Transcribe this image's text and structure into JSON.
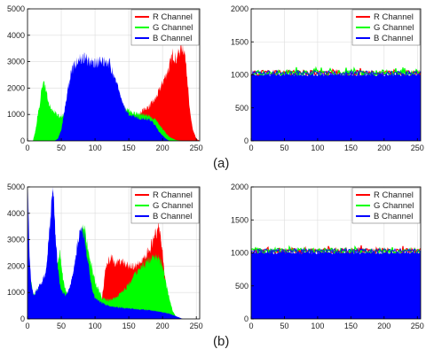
{
  "captions": {
    "a": "(a)",
    "b": "(b)"
  },
  "colors": {
    "R Channel": "#ff0000",
    "G Channel": "#00ff00",
    "B Channel": "#0000ff",
    "axis": "#000000",
    "grid": "#dcdcdc"
  },
  "chart_data": [
    {
      "id": "a-original",
      "type": "area",
      "xlim": [
        0,
        255
      ],
      "ylim": [
        0,
        5000
      ],
      "xticks": [
        0,
        50,
        100,
        150,
        200,
        250
      ],
      "yticks": [
        0,
        1000,
        2000,
        3000,
        4000,
        5000
      ],
      "grid": true,
      "legend": "top-right",
      "series": [
        {
          "name": "R Channel",
          "x": [
            0,
            90,
            110,
            130,
            150,
            160,
            170,
            180,
            190,
            200,
            210,
            215,
            220,
            225,
            230,
            235,
            240,
            245,
            250,
            255
          ],
          "values": [
            0,
            0,
            0,
            150,
            500,
            800,
            1150,
            1300,
            1600,
            2200,
            2800,
            3300,
            3100,
            3400,
            3600,
            3000,
            1200,
            400,
            80,
            0
          ]
        },
        {
          "name": "G Channel",
          "x": [
            0,
            8,
            12,
            15,
            18,
            20,
            22,
            24,
            26,
            28,
            32,
            36,
            40,
            44,
            48,
            52,
            56,
            60,
            70,
            80,
            90,
            100,
            110,
            120,
            130,
            140,
            150,
            160,
            170,
            180,
            190,
            200,
            210,
            220,
            230,
            240,
            255
          ],
          "values": [
            0,
            0,
            400,
            1000,
            1400,
            1800,
            2100,
            2200,
            2050,
            1800,
            1400,
            1150,
            1100,
            1000,
            900,
            950,
            1000,
            1100,
            1350,
            1500,
            1600,
            1650,
            1550,
            1450,
            1400,
            1300,
            1150,
            1050,
            1000,
            950,
            800,
            450,
            150,
            30,
            0,
            0,
            0
          ]
        },
        {
          "name": "B Channel",
          "x": [
            0,
            40,
            45,
            50,
            55,
            60,
            65,
            70,
            75,
            80,
            85,
            90,
            95,
            100,
            105,
            110,
            115,
            120,
            125,
            130,
            135,
            140,
            145,
            150,
            155,
            160,
            165,
            170,
            175,
            180,
            185,
            190,
            195,
            200,
            205,
            210,
            255
          ],
          "values": [
            0,
            0,
            80,
            400,
            1200,
            2000,
            2600,
            2900,
            3100,
            3150,
            3100,
            3000,
            2950,
            3000,
            2950,
            2950,
            3050,
            3000,
            2700,
            2400,
            2000,
            1500,
            1200,
            1000,
            950,
            900,
            850,
            850,
            850,
            800,
            700,
            550,
            350,
            200,
            80,
            0,
            0
          ]
        }
      ]
    },
    {
      "id": "a-encrypted",
      "type": "area",
      "xlim": [
        0,
        255
      ],
      "ylim": [
        0,
        2000
      ],
      "xticks": [
        0,
        50,
        100,
        150,
        200,
        250
      ],
      "yticks": [
        0,
        500,
        1000,
        1500,
        2000
      ],
      "grid": true,
      "legend": "top-right",
      "uniform_level": 1024,
      "series": [
        {
          "name": "R Channel",
          "x": [
            0,
            255
          ],
          "values": [
            1024,
            1024
          ]
        },
        {
          "name": "G Channel",
          "x": [
            0,
            255
          ],
          "values": [
            1024,
            1024
          ]
        },
        {
          "name": "B Channel",
          "x": [
            0,
            255
          ],
          "values": [
            1024,
            1024
          ]
        }
      ]
    },
    {
      "id": "b-original",
      "type": "area",
      "xlim": [
        0,
        255
      ],
      "ylim": [
        0,
        5000
      ],
      "xticks": [
        0,
        50,
        100,
        150,
        200,
        250
      ],
      "yticks": [
        0,
        1000,
        2000,
        3000,
        4000,
        5000
      ],
      "grid": true,
      "legend": "top-right",
      "series": [
        {
          "name": "R Channel",
          "x": [
            0,
            100,
            110,
            115,
            120,
            125,
            130,
            140,
            150,
            160,
            170,
            180,
            185,
            190,
            195,
            198,
            202,
            206,
            210,
            215,
            220,
            255
          ],
          "values": [
            0,
            0,
            700,
            1800,
            2200,
            2300,
            2100,
            2200,
            2000,
            2000,
            2200,
            2600,
            2900,
            3200,
            3600,
            3000,
            2000,
            1000,
            400,
            100,
            0,
            0
          ]
        },
        {
          "name": "G Channel",
          "x": [
            0,
            2,
            4,
            6,
            8,
            12,
            16,
            20,
            25,
            30,
            34,
            38,
            42,
            45,
            48,
            50,
            54,
            58,
            62,
            66,
            70,
            75,
            80,
            85,
            90,
            95,
            100,
            110,
            120,
            130,
            140,
            150,
            160,
            170,
            180,
            185,
            190,
            195,
            200,
            205,
            210,
            215,
            220,
            230,
            255
          ],
          "values": [
            0,
            2500,
            1200,
            1400,
            900,
            1000,
            1100,
            1200,
            1400,
            2000,
            2900,
            2100,
            1500,
            2200,
            2500,
            2000,
            1300,
            1000,
            900,
            1200,
            1700,
            2500,
            3300,
            3400,
            2600,
            2000,
            1400,
            800,
            700,
            800,
            1000,
            1300,
            1700,
            2000,
            2200,
            2300,
            2350,
            2300,
            2000,
            1400,
            800,
            300,
            80,
            0,
            0
          ]
        },
        {
          "name": "B Channel",
          "x": [
            0,
            1,
            3,
            6,
            10,
            14,
            18,
            22,
            26,
            30,
            33,
            36,
            38,
            40,
            42,
            45,
            48,
            52,
            56,
            60,
            64,
            68,
            72,
            76,
            80,
            84,
            88,
            92,
            96,
            100,
            110,
            120,
            130,
            150,
            170,
            190,
            200,
            210,
            220,
            230,
            255
          ],
          "values": [
            0,
            5000,
            2500,
            1200,
            900,
            1100,
            1300,
            1400,
            1700,
            2500,
            3500,
            4600,
            4900,
            4000,
            2900,
            1900,
            1300,
            1000,
            900,
            1000,
            1300,
            1800,
            2500,
            3100,
            3400,
            3100,
            2400,
            1700,
            1100,
            800,
            600,
            500,
            450,
            400,
            350,
            300,
            250,
            200,
            100,
            0,
            0
          ]
        }
      ]
    },
    {
      "id": "b-encrypted",
      "type": "area",
      "xlim": [
        0,
        255
      ],
      "ylim": [
        0,
        2000
      ],
      "xticks": [
        0,
        50,
        100,
        150,
        200,
        250
      ],
      "yticks": [
        0,
        500,
        1000,
        1500,
        2000
      ],
      "grid": true,
      "legend": "top-right",
      "uniform_level": 1024,
      "series": [
        {
          "name": "R Channel",
          "x": [
            0,
            255
          ],
          "values": [
            1024,
            1024
          ]
        },
        {
          "name": "G Channel",
          "x": [
            0,
            255
          ],
          "values": [
            1024,
            1024
          ]
        },
        {
          "name": "B Channel",
          "x": [
            0,
            255
          ],
          "values": [
            1024,
            1024
          ]
        }
      ]
    }
  ]
}
